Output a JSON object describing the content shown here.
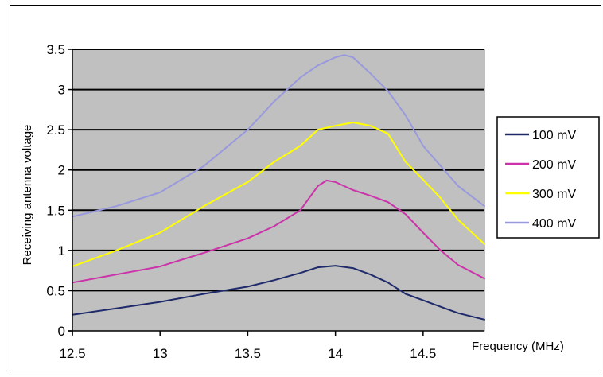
{
  "chart_data": {
    "type": "line",
    "title": "",
    "xlabel": "Frequency (MHz)",
    "ylabel": "Receiving antenna voltage",
    "xlim": [
      12.5,
      14.85
    ],
    "ylim": [
      0,
      3.5
    ],
    "x_ticks": [
      12.5,
      13,
      13.5,
      14,
      14.5
    ],
    "x_tick_labels": [
      "12.5",
      "13",
      "13.5",
      "14",
      "14.5"
    ],
    "y_ticks": [
      0,
      0.5,
      1,
      1.5,
      2,
      2.5,
      3,
      3.5
    ],
    "y_tick_labels": [
      "0",
      "0.5",
      "1",
      "1.5",
      "2",
      "2.5",
      "3",
      "3.5"
    ],
    "grid": "horizontal",
    "plot_background": "#c0c0c0",
    "legend_position": "right",
    "series": [
      {
        "name": "100 mV",
        "color": "#1f2a6b",
        "points": [
          [
            12.5,
            0.2
          ],
          [
            12.75,
            0.28
          ],
          [
            13.0,
            0.36
          ],
          [
            13.25,
            0.46
          ],
          [
            13.5,
            0.55
          ],
          [
            13.65,
            0.63
          ],
          [
            13.8,
            0.72
          ],
          [
            13.9,
            0.79
          ],
          [
            14.0,
            0.81
          ],
          [
            14.1,
            0.78
          ],
          [
            14.2,
            0.7
          ],
          [
            14.3,
            0.6
          ],
          [
            14.4,
            0.46
          ],
          [
            14.5,
            0.38
          ],
          [
            14.6,
            0.3
          ],
          [
            14.7,
            0.22
          ],
          [
            14.85,
            0.14
          ]
        ]
      },
      {
        "name": "200 mV",
        "color": "#cc33aa",
        "points": [
          [
            12.5,
            0.6
          ],
          [
            12.75,
            0.7
          ],
          [
            13.0,
            0.8
          ],
          [
            13.25,
            0.97
          ],
          [
            13.5,
            1.15
          ],
          [
            13.65,
            1.3
          ],
          [
            13.8,
            1.5
          ],
          [
            13.9,
            1.8
          ],
          [
            13.95,
            1.87
          ],
          [
            14.0,
            1.85
          ],
          [
            14.1,
            1.75
          ],
          [
            14.2,
            1.68
          ],
          [
            14.3,
            1.6
          ],
          [
            14.4,
            1.45
          ],
          [
            14.5,
            1.22
          ],
          [
            14.6,
            1.0
          ],
          [
            14.7,
            0.82
          ],
          [
            14.85,
            0.65
          ]
        ]
      },
      {
        "name": "300 mV",
        "color": "#ffff00",
        "points": [
          [
            12.5,
            0.8
          ],
          [
            12.75,
            1.0
          ],
          [
            13.0,
            1.22
          ],
          [
            13.25,
            1.55
          ],
          [
            13.5,
            1.85
          ],
          [
            13.65,
            2.1
          ],
          [
            13.8,
            2.3
          ],
          [
            13.9,
            2.5
          ],
          [
            14.0,
            2.55
          ],
          [
            14.1,
            2.59
          ],
          [
            14.2,
            2.55
          ],
          [
            14.3,
            2.45
          ],
          [
            14.4,
            2.1
          ],
          [
            14.5,
            1.88
          ],
          [
            14.6,
            1.65
          ],
          [
            14.7,
            1.38
          ],
          [
            14.85,
            1.08
          ]
        ]
      },
      {
        "name": "400 mV",
        "color": "#9999dd",
        "points": [
          [
            12.5,
            1.42
          ],
          [
            12.75,
            1.55
          ],
          [
            13.0,
            1.72
          ],
          [
            13.25,
            2.05
          ],
          [
            13.5,
            2.5
          ],
          [
            13.65,
            2.85
          ],
          [
            13.8,
            3.15
          ],
          [
            13.9,
            3.3
          ],
          [
            14.0,
            3.4
          ],
          [
            14.05,
            3.43
          ],
          [
            14.1,
            3.4
          ],
          [
            14.2,
            3.2
          ],
          [
            14.3,
            2.98
          ],
          [
            14.4,
            2.68
          ],
          [
            14.5,
            2.3
          ],
          [
            14.6,
            2.05
          ],
          [
            14.7,
            1.8
          ],
          [
            14.85,
            1.55
          ]
        ]
      }
    ]
  }
}
